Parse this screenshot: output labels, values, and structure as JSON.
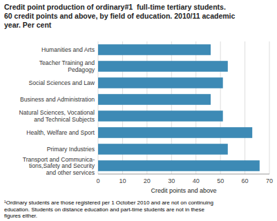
{
  "chart_data": {
    "type": "bar",
    "orientation": "horizontal",
    "title": "Credit point production of ordinary#1  full-time tertiary students.\n60 credit points and above, by field of education. 2010/11 academic\nyear. Per cent",
    "categories": [
      "Transport and Communica-\ntions,Safety and Security\nand other services",
      "Primary Industries",
      "Health, Welfare and Sport",
      "Natural Sciences, Vocational\nand Technical Subjects",
      "Business and Administration",
      "Social Sciences and Law",
      "Teacher Training and\nPedagogy",
      "Humanities and Arts"
    ],
    "values": [
      66,
      53,
      63,
      51,
      46,
      51,
      53,
      46
    ],
    "color": "#3d8ab5",
    "x_label": "Credit points and above",
    "xlim": [
      0,
      70
    ],
    "xticks": [
      0,
      10,
      20,
      30,
      40,
      50,
      60,
      70
    ],
    "grid": true,
    "annotations": [
      "¹Ordinary students are those registered per 1 October 2010 and are not on continuing\neducation. Students on distance education and part-time students are not in these\nfigures either."
    ]
  }
}
